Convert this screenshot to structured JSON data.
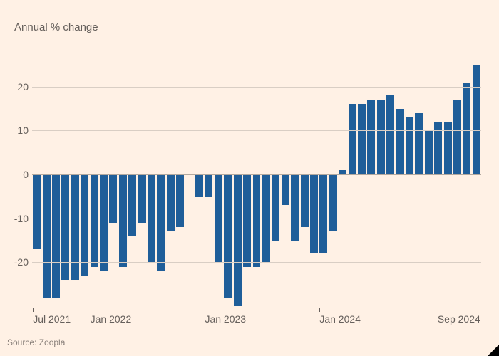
{
  "subtitle": "Annual % change",
  "source": "Source: Zoopla",
  "chart": {
    "type": "bar",
    "background_color": "#fff1e5",
    "bar_color": "#1f5e99",
    "grid_color": "#d9cec4",
    "zero_line_color": "#b3a99f",
    "text_color": "#66605c",
    "font_family_labels": "-apple-system, Helvetica, Arial, sans-serif",
    "label_fontsize": 14,
    "subtitle_fontsize": 15,
    "source_fontsize": 12,
    "ylim": [
      -30,
      30
    ],
    "yticks": [
      -20,
      -10,
      0,
      10,
      20
    ],
    "bar_gap_ratio": 0.18,
    "values": [
      -17,
      -28,
      -28,
      -24,
      -24,
      -23,
      -21,
      -22,
      -11,
      -21,
      -14,
      -11,
      -20,
      -22,
      -13,
      -12,
      0,
      -5,
      -5,
      -20,
      -28,
      -30,
      -21,
      -21,
      -20,
      -15,
      -7,
      -15,
      -12,
      -18,
      -18,
      -13,
      1,
      16,
      16,
      17,
      17,
      18,
      15,
      13,
      14,
      10,
      12,
      12,
      17,
      21,
      25
    ],
    "xtick_labels": [
      {
        "index": 0,
        "label": "Jul 2021"
      },
      {
        "index": 6,
        "label": "Jan 2022"
      },
      {
        "index": 18,
        "label": "Jan 2023"
      },
      {
        "index": 30,
        "label": "Jan 2024"
      },
      {
        "index": 46,
        "label": "Sep 2024",
        "align": "right"
      }
    ]
  }
}
